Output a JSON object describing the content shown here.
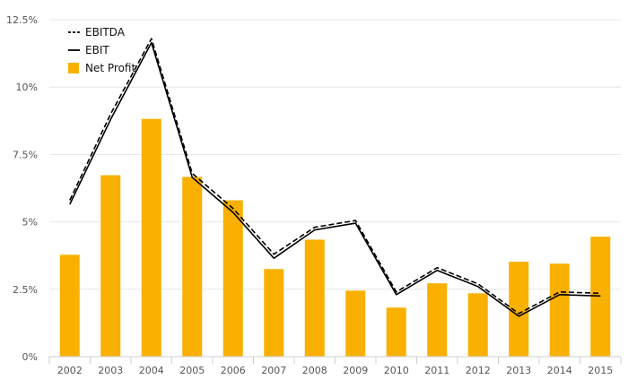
{
  "chart_data": {
    "type": "bar",
    "title": "",
    "xlabel": "",
    "ylabel": "",
    "categories": [
      "2002",
      "2003",
      "2004",
      "2005",
      "2006",
      "2007",
      "2008",
      "2009",
      "2010",
      "2011",
      "2012",
      "2013",
      "2014",
      "2015"
    ],
    "ylim": [
      0,
      12.5
    ],
    "yticks": [
      0,
      2.5,
      5,
      7.5,
      10,
      12.5
    ],
    "ytick_labels": [
      "0%",
      "2.5%",
      "5%",
      "7.5%",
      "10%",
      "12.5%"
    ],
    "grid": true,
    "legend_position": "top-left",
    "series": [
      {
        "name": "EBITDA",
        "type": "line",
        "style": "dashed",
        "color": "#000000",
        "values": [
          5.8,
          9.0,
          11.8,
          6.8,
          5.5,
          3.8,
          4.8,
          5.05,
          2.4,
          3.3,
          2.7,
          1.6,
          2.4,
          2.35
        ]
      },
      {
        "name": "EBIT",
        "type": "line",
        "style": "solid",
        "color": "#000000",
        "values": [
          5.65,
          8.8,
          11.65,
          6.65,
          5.35,
          3.65,
          4.7,
          4.95,
          2.3,
          3.2,
          2.6,
          1.5,
          2.3,
          2.25
        ]
      },
      {
        "name": "Net Profit",
        "type": "bar",
        "color": "#F9B000",
        "values": [
          3.78,
          6.73,
          8.82,
          6.67,
          5.8,
          3.25,
          4.34,
          2.45,
          1.82,
          2.72,
          2.35,
          3.52,
          3.45,
          4.45
        ]
      }
    ]
  }
}
